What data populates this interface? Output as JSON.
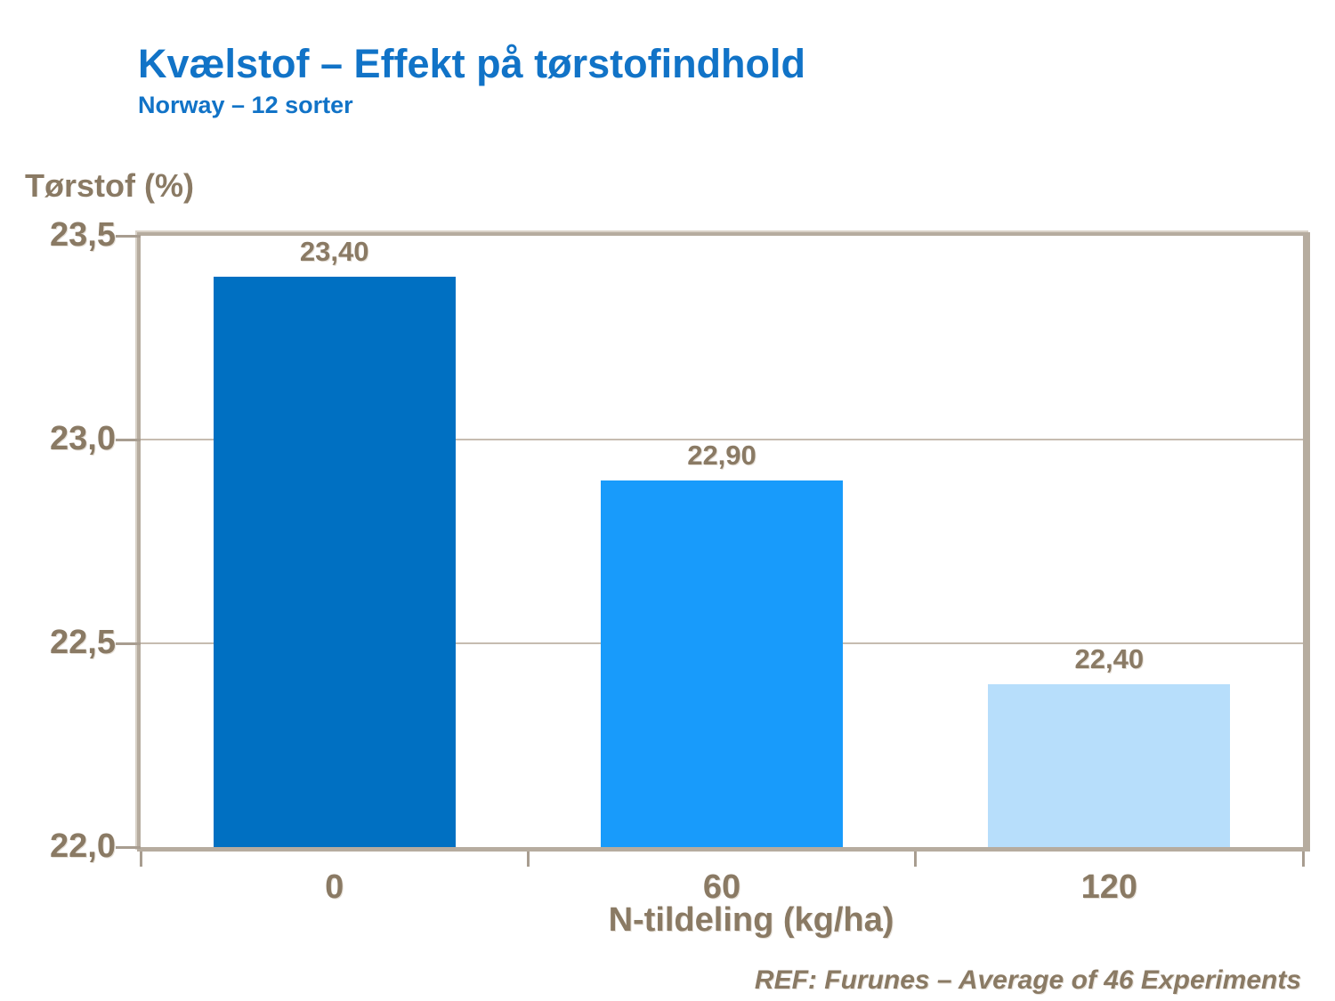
{
  "header": {
    "title": "Kvælstof – Effekt på tørstofindhold",
    "subtitle": "Norway – 12 sorter"
  },
  "footer": {
    "ref": "REF: Furunes – Average of 46 Experiments"
  },
  "chart_data": {
    "type": "bar",
    "title": "Kvælstof – Effekt på tørstofindhold",
    "subtitle": "Norway – 12 sorter",
    "categories": [
      "0",
      "60",
      "120"
    ],
    "values": [
      23.4,
      22.9,
      22.4
    ],
    "value_labels": [
      "23,40",
      "22,90",
      "22,40"
    ],
    "bar_colors": [
      "#0070C2",
      "#189BFB",
      "#B7DEFB"
    ],
    "xlabel": "N-tildeling (kg/ha)",
    "ylabel": "Tørstof (%)",
    "ylim": [
      22.0,
      23.5
    ],
    "yticks": [
      23.5,
      23.0,
      22.5,
      22.0
    ],
    "ytick_labels": [
      "23,5",
      "23,0",
      "22,5",
      "22,0"
    ],
    "grid": "horizontal",
    "legend": "none",
    "annotation": "REF: Furunes – Average of 46 Experiments"
  },
  "colors": {
    "title_blue": "#1173C7",
    "label_brown": "#8A7A64",
    "frame_taupe": "#B6AC9F",
    "gridline": "#C6BCB0",
    "background": "#FFFFFF"
  }
}
